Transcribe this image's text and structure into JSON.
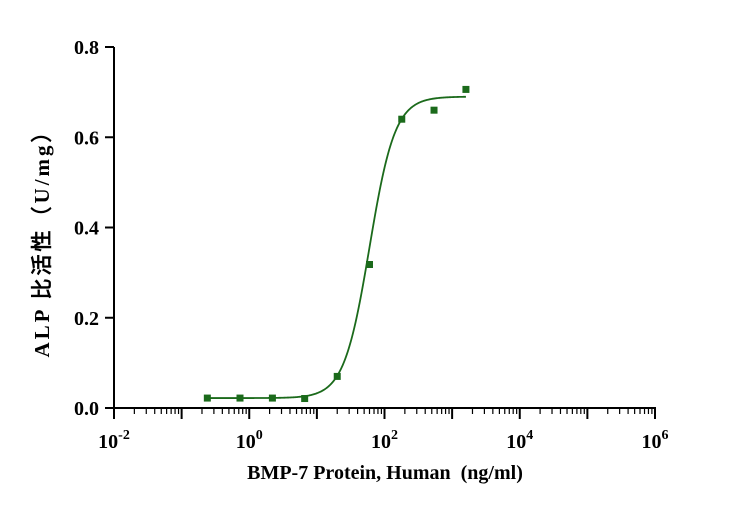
{
  "chart_data": {
    "type": "scatter",
    "title": "",
    "xlabel": "BMP-7 Protein, Human  (ng/ml)",
    "ylabel": "ALP 比活性（U/mg）",
    "x_scale": "log10",
    "xlim": [
      0.01,
      1000000
    ],
    "ylim": [
      0,
      0.8
    ],
    "x_ticks": [
      {
        "value": 0.01,
        "base": "10",
        "exp": "-2"
      },
      {
        "value": 1,
        "base": "10",
        "exp": "0"
      },
      {
        "value": 100,
        "base": "10",
        "exp": "2"
      },
      {
        "value": 10000,
        "base": "10",
        "exp": "4"
      },
      {
        "value": 1000000,
        "base": "10",
        "exp": "6"
      }
    ],
    "y_ticks": [
      "0.0",
      "0.2",
      "0.4",
      "0.6",
      "0.8"
    ],
    "grid": false,
    "color": "#1b6a1b",
    "series": [
      {
        "x": [
          0.24,
          0.73,
          2.2,
          6.6,
          20,
          60,
          180,
          540,
          1600
        ],
        "values": [
          0.022,
          0.022,
          0.022,
          0.021,
          0.07,
          0.318,
          0.64,
          0.66,
          0.706
        ]
      }
    ],
    "fit": {
      "type": "4PL",
      "bottom": 0.022,
      "top": 0.69,
      "ec50": 60,
      "hill": 2.3,
      "x_range": [
        0.24,
        1600
      ]
    }
  }
}
